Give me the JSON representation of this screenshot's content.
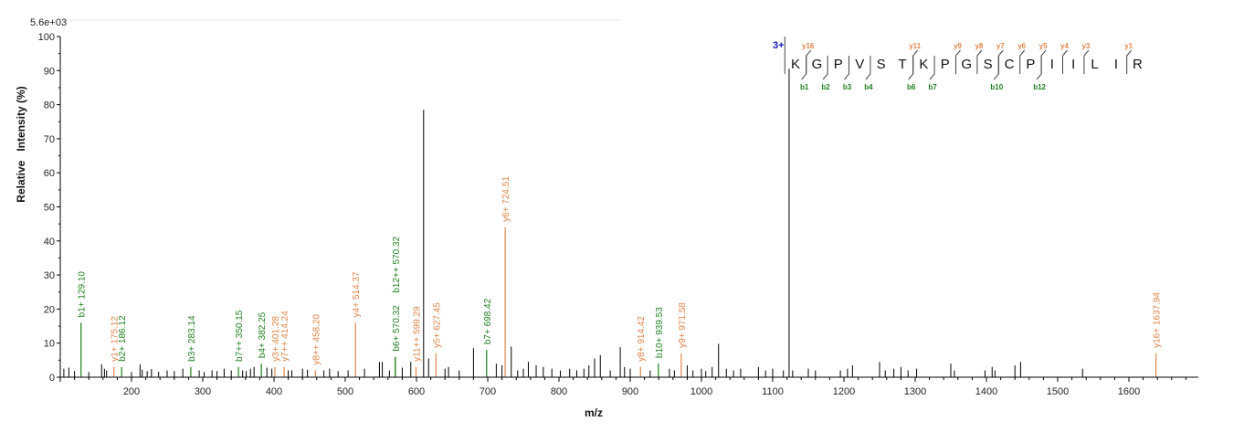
{
  "chart_data": {
    "type": "spectrum",
    "max_intensity_label": "5.6e+03",
    "xlabel": "m/z",
    "ylabel": "Relative   Intensity (%)",
    "xlim": [
      100,
      1700
    ],
    "ylim": [
      0,
      100
    ],
    "x_ticks": [
      200,
      300,
      400,
      500,
      600,
      700,
      800,
      900,
      1000,
      1100,
      1200,
      1300,
      1400,
      1500,
      1600
    ],
    "y_ticks": [
      0,
      10,
      20,
      30,
      40,
      50,
      60,
      70,
      80,
      90,
      100
    ],
    "colors": {
      "b_ion": "#1e7f1e",
      "y_ion": "#e0844a",
      "other": "#000000",
      "charge": "#1414b4"
    },
    "labeled_peaks": [
      {
        "mz": 129.1,
        "intensity": 16,
        "ion": "b",
        "label": "b1+ 129.10"
      },
      {
        "mz": 175.12,
        "intensity": 3,
        "ion": "y",
        "label": "y1+ 175.12"
      },
      {
        "mz": 186.12,
        "intensity": 3,
        "ion": "b",
        "label": "b2+ 186.12"
      },
      {
        "mz": 283.14,
        "intensity": 3,
        "ion": "b",
        "label": "b3+ 283.14"
      },
      {
        "mz": 350.15,
        "intensity": 3,
        "ion": "b",
        "label": "b7++ 350.15"
      },
      {
        "mz": 382.25,
        "intensity": 4,
        "ion": "b",
        "label": "b4+ 382.25"
      },
      {
        "mz": 401.28,
        "intensity": 3,
        "ion": "y",
        "label": "y3+ 401.28"
      },
      {
        "mz": 414.24,
        "intensity": 3,
        "ion": "y",
        "label": "y7++ 414.24"
      },
      {
        "mz": 458.2,
        "intensity": 2,
        "ion": "y",
        "label": "y8++ 458.20"
      },
      {
        "mz": 514.37,
        "intensity": 16,
        "ion": "y",
        "label": "y4+ 514.37"
      },
      {
        "mz": 570.32,
        "intensity": 6,
        "ion": "b",
        "label": "b6+ 570.32"
      },
      {
        "mz": 570.32,
        "intensity": 6,
        "ion": "b",
        "label": "b12++ 570.32"
      },
      {
        "mz": 599.29,
        "intensity": 3,
        "ion": "y",
        "label": "y11++ 599.29"
      },
      {
        "mz": 627.45,
        "intensity": 7,
        "ion": "y",
        "label": "y5+ 627.45"
      },
      {
        "mz": 698.42,
        "intensity": 8,
        "ion": "b",
        "label": "b7+ 698.42"
      },
      {
        "mz": 724.51,
        "intensity": 44,
        "ion": "y",
        "label": "y6+ 724.51"
      },
      {
        "mz": 914.42,
        "intensity": 3,
        "ion": "y",
        "label": "y8+ 914.42"
      },
      {
        "mz": 939.53,
        "intensity": 4,
        "ion": "b",
        "label": "b10+ 939.53"
      },
      {
        "mz": 971.58,
        "intensity": 7,
        "ion": "y",
        "label": "y9+ 971.58"
      },
      {
        "mz": 1637.94,
        "intensity": 7,
        "ion": "y",
        "label": "y16+ 1637.94"
      }
    ],
    "unlabeled_peaks": [
      [
        105,
        2.5
      ],
      [
        112,
        2.8
      ],
      [
        120,
        1.8
      ],
      [
        140,
        1.5
      ],
      [
        158,
        3.8
      ],
      [
        162,
        2.5
      ],
      [
        165,
        2.0
      ],
      [
        200,
        1.5
      ],
      [
        212,
        3.8
      ],
      [
        215,
        2.2
      ],
      [
        222,
        1.8
      ],
      [
        228,
        2.4
      ],
      [
        238,
        1.6
      ],
      [
        250,
        2.0
      ],
      [
        260,
        1.8
      ],
      [
        272,
        2.5
      ],
      [
        295,
        2.0
      ],
      [
        302,
        1.5
      ],
      [
        313,
        2.0
      ],
      [
        320,
        1.8
      ],
      [
        330,
        2.5
      ],
      [
        340,
        2.0
      ],
      [
        356,
        2.0
      ],
      [
        361,
        1.8
      ],
      [
        367,
        2.5
      ],
      [
        372,
        3.0
      ],
      [
        390,
        2.8
      ],
      [
        397,
        2.5
      ],
      [
        420,
        2.0
      ],
      [
        425,
        2.0
      ],
      [
        440,
        2.5
      ],
      [
        447,
        2.2
      ],
      [
        470,
        2.0
      ],
      [
        478,
        2.5
      ],
      [
        490,
        1.8
      ],
      [
        504,
        2.0
      ],
      [
        527,
        2.5
      ],
      [
        548,
        4.5
      ],
      [
        552,
        4.5
      ],
      [
        562,
        2.0
      ],
      [
        580,
        2.8
      ],
      [
        592,
        4.5
      ],
      [
        610,
        78.5
      ],
      [
        617,
        5.5
      ],
      [
        640,
        2.5
      ],
      [
        645,
        3.0
      ],
      [
        660,
        2.0
      ],
      [
        680,
        8.5
      ],
      [
        712,
        4.0
      ],
      [
        720,
        3.5
      ],
      [
        733,
        9.0
      ],
      [
        742,
        2.0
      ],
      [
        750,
        2.5
      ],
      [
        757,
        4.5
      ],
      [
        768,
        3.5
      ],
      [
        778,
        3.0
      ],
      [
        790,
        2.5
      ],
      [
        802,
        2.0
      ],
      [
        815,
        2.5
      ],
      [
        825,
        2.0
      ],
      [
        835,
        2.5
      ],
      [
        842,
        3.5
      ],
      [
        850,
        5.5
      ],
      [
        858,
        6.5
      ],
      [
        872,
        2.0
      ],
      [
        886,
        8.8
      ],
      [
        892,
        3.0
      ],
      [
        900,
        2.5
      ],
      [
        928,
        2.0
      ],
      [
        955,
        2.5
      ],
      [
        962,
        2.0
      ],
      [
        980,
        3.5
      ],
      [
        988,
        2.0
      ],
      [
        1000,
        2.5
      ],
      [
        1006,
        1.8
      ],
      [
        1015,
        3.0
      ],
      [
        1024,
        9.8
      ],
      [
        1035,
        2.5
      ],
      [
        1045,
        2.0
      ],
      [
        1055,
        2.5
      ],
      [
        1080,
        3.0
      ],
      [
        1090,
        2.0
      ],
      [
        1100,
        2.5
      ],
      [
        1115,
        2.0
      ],
      [
        1123,
        90.5
      ],
      [
        1128,
        2.0
      ],
      [
        1150,
        2.5
      ],
      [
        1160,
        2.0
      ],
      [
        1195,
        2.0
      ],
      [
        1205,
        2.5
      ],
      [
        1212,
        3.5
      ],
      [
        1250,
        4.5
      ],
      [
        1258,
        2.0
      ],
      [
        1270,
        2.5
      ],
      [
        1280,
        3.0
      ],
      [
        1290,
        2.0
      ],
      [
        1302,
        2.5
      ],
      [
        1350,
        4.0
      ],
      [
        1355,
        2.0
      ],
      [
        1398,
        2.0
      ],
      [
        1408,
        3.0
      ],
      [
        1412,
        2.0
      ],
      [
        1440,
        3.5
      ],
      [
        1448,
        4.5
      ],
      [
        1535,
        2.5
      ]
    ],
    "peptide": {
      "charge": "3+",
      "sequence": [
        "K",
        "G",
        "P",
        "V",
        "S",
        "T",
        "K",
        "P",
        "G",
        "S",
        "C",
        "P",
        "I",
        "I",
        "L",
        "I",
        "R"
      ],
      "b_ions": [
        {
          "after": 1,
          "label": "b1"
        },
        {
          "after": 2,
          "label": "b2"
        },
        {
          "after": 3,
          "label": "b3"
        },
        {
          "after": 4,
          "label": "b4"
        },
        {
          "after": 6,
          "label": "b6"
        },
        {
          "after": 7,
          "label": "b7"
        },
        {
          "after": 10,
          "label": "b10"
        },
        {
          "after": 12,
          "label": "b12"
        }
      ],
      "y_ions": [
        {
          "after": 1,
          "label": "y16"
        },
        {
          "after": 6,
          "label": "y11"
        },
        {
          "after": 8,
          "label": "y9"
        },
        {
          "after": 9,
          "label": "y8"
        },
        {
          "after": 10,
          "label": "y7"
        },
        {
          "after": 11,
          "label": "y6"
        },
        {
          "after": 12,
          "label": "y5"
        },
        {
          "after": 13,
          "label": "y4"
        },
        {
          "after": 14,
          "label": "y3"
        },
        {
          "after": 16,
          "label": "y1"
        }
      ]
    }
  }
}
